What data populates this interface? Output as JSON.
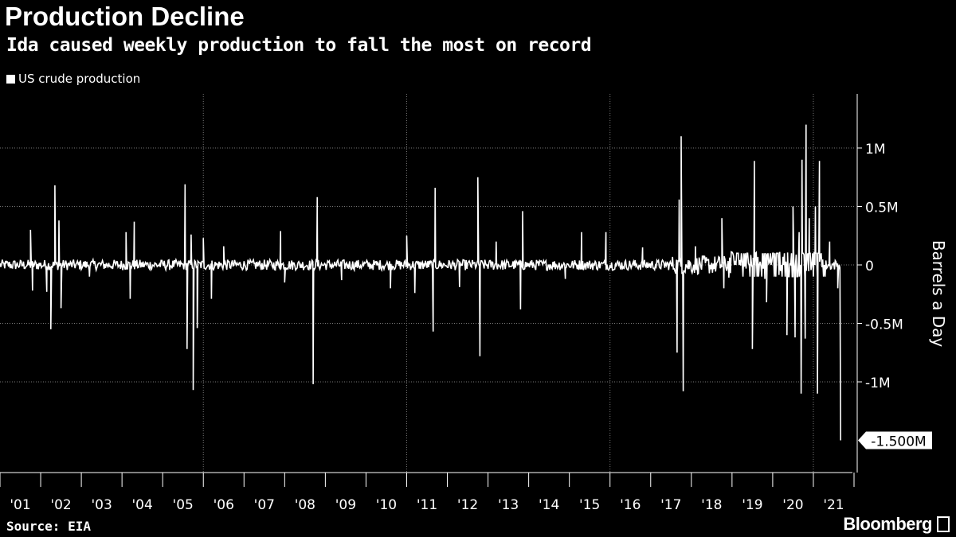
{
  "header": {
    "title": "Production Decline",
    "subtitle": "Ida caused weekly production to fall the most on record"
  },
  "footer": {
    "source": "Source: EIA",
    "brand": "Bloomberg"
  },
  "colors": {
    "background": "#000000",
    "line": "#ffffff",
    "grid": "#666666"
  },
  "chart_data": {
    "type": "line",
    "title": "Production Decline",
    "subtitle": "Ida caused weekly production to fall the most on record",
    "ylabel": "Barrels a Day",
    "xlabel": "",
    "legend": [
      "US crude production"
    ],
    "legend_position": "top-left",
    "grid": true,
    "ylim": [
      -1750000,
      1450000
    ],
    "xlim": [
      2001.0,
      2022.0
    ],
    "x_tick_labels": [
      "'01",
      "'02",
      "'03",
      "'04",
      "'05",
      "'06",
      "'07",
      "'08",
      "'09",
      "'10",
      "'11",
      "'12",
      "'13",
      "'14",
      "'15",
      "'16",
      "'17",
      "'18",
      "'19",
      "'20",
      "'21"
    ],
    "y_ticks": [
      {
        "value": 1000000,
        "label": "1M"
      },
      {
        "value": 500000,
        "label": "0.5M"
      },
      {
        "value": 0,
        "label": "0"
      },
      {
        "value": -500000,
        "label": "-0.5M"
      },
      {
        "value": -1000000,
        "label": "-1M"
      }
    ],
    "last_value_label": "-1.500M",
    "series": [
      {
        "name": "US crude production",
        "points": [
          {
            "x": 2001.75,
            "y": 300000
          },
          {
            "x": 2001.8,
            "y": -220000
          },
          {
            "x": 2002.15,
            "y": -230000
          },
          {
            "x": 2002.25,
            "y": -550000
          },
          {
            "x": 2002.35,
            "y": 680000
          },
          {
            "x": 2002.45,
            "y": 380000
          },
          {
            "x": 2002.5,
            "y": -370000
          },
          {
            "x": 2003.2,
            "y": -100000
          },
          {
            "x": 2004.1,
            "y": 280000
          },
          {
            "x": 2004.2,
            "y": -290000
          },
          {
            "x": 2004.3,
            "y": 370000
          },
          {
            "x": 2005.55,
            "y": 690000
          },
          {
            "x": 2005.6,
            "y": -720000
          },
          {
            "x": 2005.7,
            "y": 260000
          },
          {
            "x": 2005.75,
            "y": -1070000
          },
          {
            "x": 2005.85,
            "y": -540000
          },
          {
            "x": 2006.0,
            "y": 230000
          },
          {
            "x": 2006.2,
            "y": -290000
          },
          {
            "x": 2006.5,
            "y": 160000
          },
          {
            "x": 2007.9,
            "y": 290000
          },
          {
            "x": 2008.0,
            "y": -150000
          },
          {
            "x": 2008.7,
            "y": -1020000
          },
          {
            "x": 2008.8,
            "y": 580000
          },
          {
            "x": 2009.4,
            "y": -130000
          },
          {
            "x": 2010.6,
            "y": -200000
          },
          {
            "x": 2011.0,
            "y": 250000
          },
          {
            "x": 2011.2,
            "y": -240000
          },
          {
            "x": 2011.65,
            "y": -570000
          },
          {
            "x": 2011.7,
            "y": 660000
          },
          {
            "x": 2012.3,
            "y": -190000
          },
          {
            "x": 2012.75,
            "y": 750000
          },
          {
            "x": 2012.8,
            "y": -780000
          },
          {
            "x": 2013.2,
            "y": 200000
          },
          {
            "x": 2013.8,
            "y": -380000
          },
          {
            "x": 2013.85,
            "y": 460000
          },
          {
            "x": 2014.9,
            "y": -120000
          },
          {
            "x": 2015.3,
            "y": 280000
          },
          {
            "x": 2015.9,
            "y": 280000
          },
          {
            "x": 2016.8,
            "y": 150000
          },
          {
            "x": 2017.65,
            "y": -750000
          },
          {
            "x": 2017.7,
            "y": 560000
          },
          {
            "x": 2017.75,
            "y": 1100000
          },
          {
            "x": 2017.8,
            "y": -1080000
          },
          {
            "x": 2018.1,
            "y": 160000
          },
          {
            "x": 2018.75,
            "y": 400000
          },
          {
            "x": 2018.8,
            "y": -200000
          },
          {
            "x": 2019.5,
            "y": -720000
          },
          {
            "x": 2019.55,
            "y": 890000
          },
          {
            "x": 2019.85,
            "y": -320000
          },
          {
            "x": 2020.35,
            "y": -600000
          },
          {
            "x": 2020.5,
            "y": 500000
          },
          {
            "x": 2020.55,
            "y": -620000
          },
          {
            "x": 2020.65,
            "y": 280000
          },
          {
            "x": 2020.7,
            "y": -1100000
          },
          {
            "x": 2020.72,
            "y": 900000
          },
          {
            "x": 2020.8,
            "y": -630000
          },
          {
            "x": 2020.82,
            "y": 1200000
          },
          {
            "x": 2020.9,
            "y": 400000
          },
          {
            "x": 2021.05,
            "y": 500000
          },
          {
            "x": 2021.1,
            "y": -1100000
          },
          {
            "x": 2021.15,
            "y": 890000
          },
          {
            "x": 2021.4,
            "y": 200000
          },
          {
            "x": 2021.6,
            "y": -200000
          },
          {
            "x": 2021.67,
            "y": -1500000
          }
        ]
      }
    ]
  }
}
